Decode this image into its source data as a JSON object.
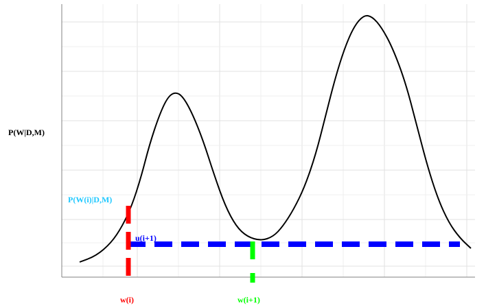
{
  "chart_data": {
    "type": "line",
    "ylabel": "P(W|D,M)",
    "grid": true,
    "series": [
      {
        "values": [
          [
            0.05,
            0.01
          ],
          [
            0.18,
            0.08
          ],
          [
            0.28,
            0.36
          ],
          [
            0.33,
            0.5
          ],
          [
            0.4,
            0.34
          ],
          [
            0.48,
            0.06
          ],
          [
            0.53,
            0.01
          ],
          [
            0.62,
            0.1
          ],
          [
            0.73,
            0.45
          ],
          [
            0.8,
            0.62
          ],
          [
            0.85,
            0.6
          ],
          [
            0.93,
            0.22
          ],
          [
            1.0,
            0.0
          ]
        ]
      }
    ],
    "annotations": {
      "prob_label": "P(W(i)|D,M)",
      "u_label": "u(i+1)",
      "w_i_label": "w(i)",
      "w_next_label": "w(i+1)"
    },
    "colors": {
      "curve": "#000000",
      "w_i": "#ff0000",
      "w_next": "#00ff00",
      "u_line": "#0000ff",
      "prob_text": "#1ec8ff",
      "u_text": "#0000ff",
      "grid": "#e0e0e0",
      "axis": "#808080"
    }
  }
}
